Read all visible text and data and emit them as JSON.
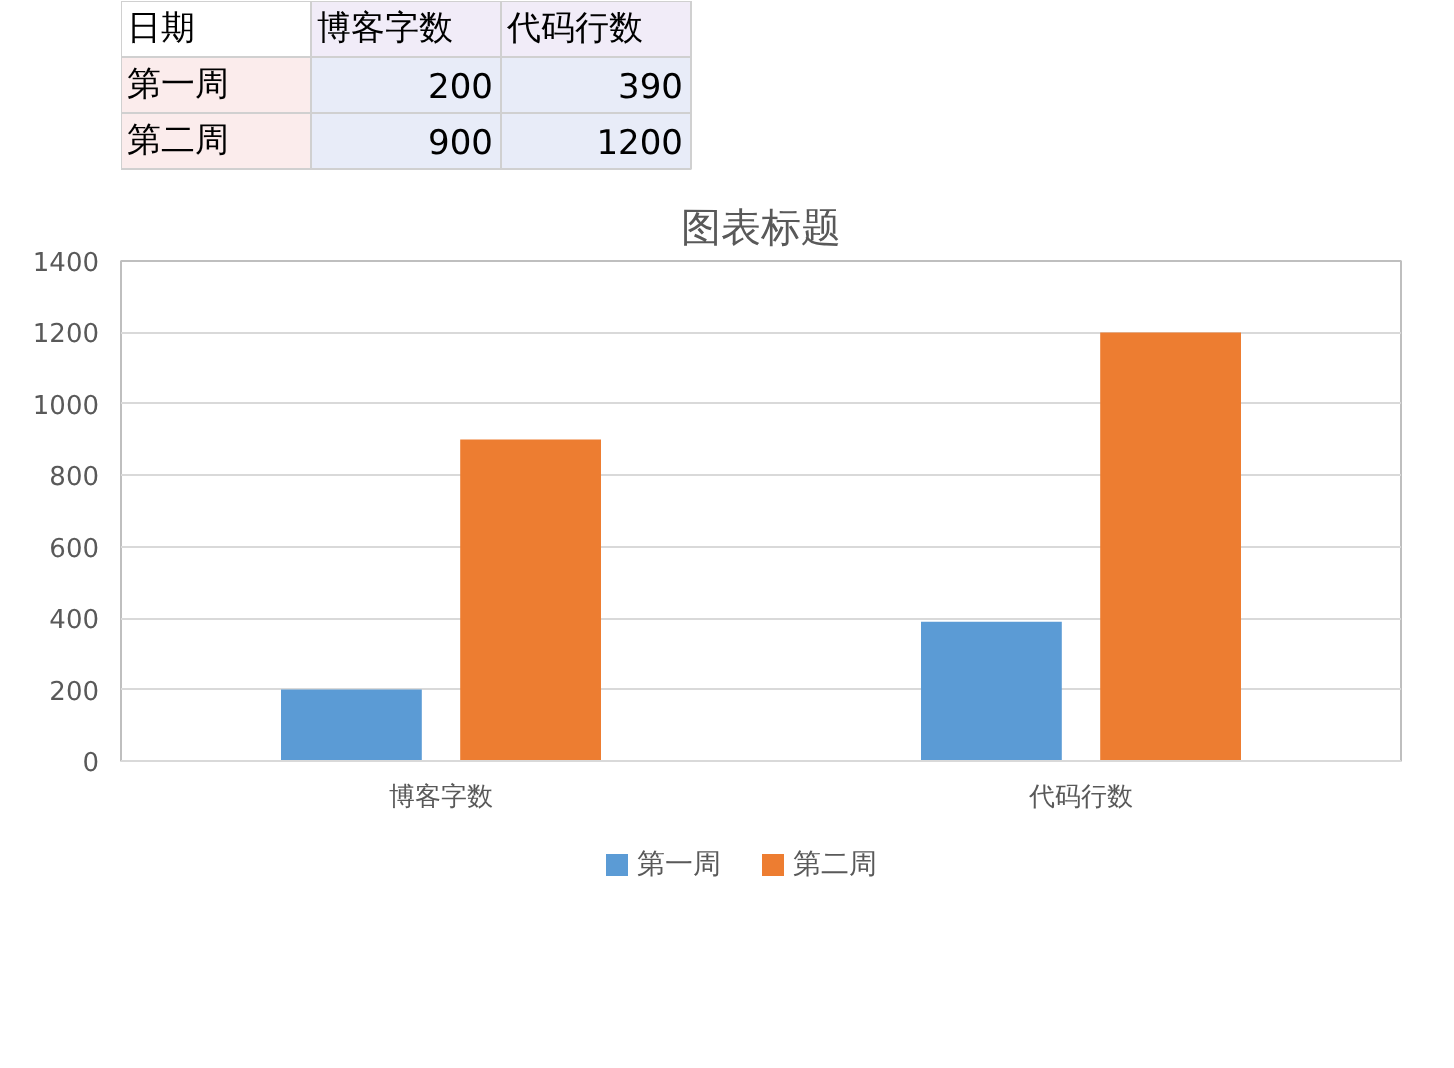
{
  "chart_data": [
    {
      "type": "other",
      "annotations": [
        "日期",
        "博客字数",
        "代码行数",
        "第一周",
        "200",
        "390",
        "第二周",
        "900",
        "1200"
      ]
    },
    {
      "type": "bar",
      "title": "图表标题",
      "categories": [
        "博客字数",
        "代码行数"
      ],
      "series": [
        {
          "name": "第一周",
          "color": "#5b9bd5",
          "values": [
            200,
            390
          ]
        },
        {
          "name": "第二周",
          "color": "#ed7d31",
          "values": [
            900,
            1200
          ]
        }
      ],
      "ylim": [
        0,
        1400
      ],
      "yticks": [
        0,
        200,
        400,
        600,
        800,
        1000,
        1200,
        1400
      ],
      "grid": "y",
      "legend": "bottom"
    }
  ]
}
